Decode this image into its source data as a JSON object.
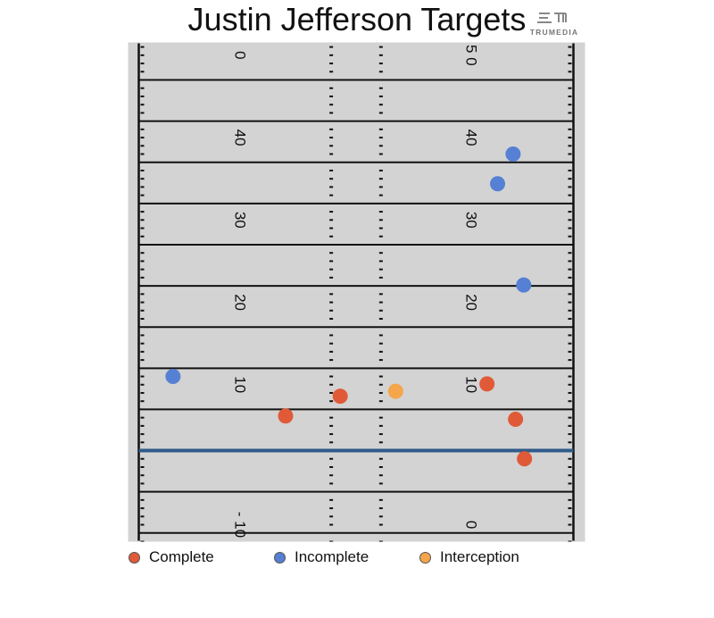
{
  "title": "Justin Jefferson Targets",
  "logo": {
    "text": "TRUMEDIA",
    "icon": "trumedia-logo-icon"
  },
  "colors": {
    "field": "#d3d3d3",
    "line": "#111111",
    "line_of_scrimmage": "#2f5b8a",
    "complete": "#e05a38",
    "incomplete": "#5580d4",
    "interception": "#f5a54a"
  },
  "legend": [
    {
      "label": "Complete",
      "key": "complete"
    },
    {
      "label": "Incomplete",
      "key": "incomplete"
    },
    {
      "label": "Interception",
      "key": "interception"
    }
  ],
  "chart_data": {
    "type": "scatter",
    "title": "Justin Jefferson Targets",
    "xlabel": "",
    "ylabel": "",
    "field": {
      "y_range": [
        -11,
        49.5
      ],
      "yard_lines_every": 5,
      "line_of_scrimmage": 0,
      "width_yards": 53.3,
      "hash_marks_x": [
        23.6,
        29.7
      ],
      "number_labels": [
        {
          "text": "0",
          "yard": 48,
          "side": "left"
        },
        {
          "text": "40",
          "yard": 38,
          "side": "left"
        },
        {
          "text": "30",
          "yard": 28,
          "side": "left"
        },
        {
          "text": "20",
          "yard": 18,
          "side": "left"
        },
        {
          "text": "10",
          "yard": 8,
          "side": "left"
        },
        {
          "text": "- 10",
          "yard": -9,
          "side": "left"
        },
        {
          "text": "5 0",
          "yard": 48,
          "side": "right"
        },
        {
          "text": "40",
          "yard": 38,
          "side": "right"
        },
        {
          "text": "30",
          "yard": 28,
          "side": "right"
        },
        {
          "text": "20",
          "yard": 18,
          "side": "right"
        },
        {
          "text": "10",
          "yard": 8,
          "side": "right"
        },
        {
          "text": "0",
          "yard": -9,
          "side": "right"
        }
      ]
    },
    "series": [
      {
        "name": "Complete",
        "key": "complete",
        "points": [
          {
            "x": 18.0,
            "y": 4.2
          },
          {
            "x": 24.7,
            "y": 6.6
          },
          {
            "x": 42.7,
            "y": 8.1
          },
          {
            "x": 46.2,
            "y": 3.8
          },
          {
            "x": 47.3,
            "y": -1.0
          }
        ]
      },
      {
        "name": "Incomplete",
        "key": "incomplete",
        "points": [
          {
            "x": 4.2,
            "y": 9.0
          },
          {
            "x": 44.0,
            "y": 32.4
          },
          {
            "x": 45.9,
            "y": 36.0
          },
          {
            "x": 47.2,
            "y": 20.1
          }
        ]
      },
      {
        "name": "Interception",
        "key": "interception",
        "points": [
          {
            "x": 31.5,
            "y": 7.2
          }
        ]
      }
    ]
  }
}
